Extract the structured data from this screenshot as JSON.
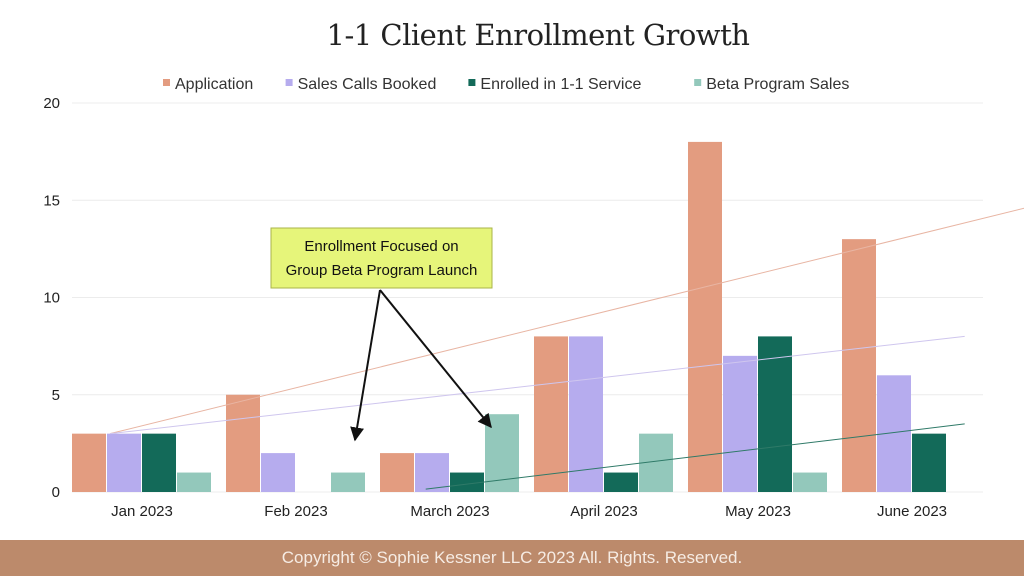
{
  "chart_data": {
    "type": "bar",
    "title": "1-1 Client Enrollment Growth",
    "xlabel": "",
    "ylabel": "",
    "ylim": [
      0,
      20
    ],
    "yticks": [
      0,
      5,
      10,
      15,
      20
    ],
    "grid": true,
    "legend_position": "top",
    "categories": [
      "Jan 2023",
      "Feb 2023",
      "March 2023",
      "April 2023",
      "May 2023",
      "June 2023"
    ],
    "series": [
      {
        "name": "Application",
        "color": "#e39c80",
        "values": [
          3,
          5,
          2,
          8,
          18,
          13
        ]
      },
      {
        "name": "Sales Calls Booked",
        "color": "#b6acee",
        "values": [
          3,
          2,
          2,
          8,
          7,
          6
        ]
      },
      {
        "name": "Enrolled in 1-1 Service",
        "color": "#136a59",
        "values": [
          3,
          0,
          1,
          1,
          8,
          3
        ]
      },
      {
        "name": "Beta Program Sales",
        "color": "#93c8bb",
        "values": [
          1,
          1,
          4,
          3,
          1,
          0
        ]
      }
    ],
    "trendlines": [
      {
        "series": "Application",
        "color": "#e8b5a3",
        "from": [
          0,
          3
        ],
        "to": [
          6.3,
          15.3
        ]
      },
      {
        "series": "Sales Calls Booked",
        "color": "#cfc6ee",
        "from": [
          0,
          3
        ],
        "to": [
          5.55,
          8
        ]
      },
      {
        "series": "Enrolled in 1-1 Service",
        "color": "#2f7a68",
        "from": [
          2.05,
          0.15
        ],
        "to": [
          5.55,
          3.5
        ]
      }
    ],
    "annotation": {
      "lines": [
        "Enrollment Focused on",
        "Group Beta Program Launch"
      ],
      "background": "#e6f57a"
    }
  },
  "footer": {
    "text": "Copyright © Sophie Kessner LLC 2023 All. Rights. Reserved.",
    "background": "#bc8a6b"
  }
}
